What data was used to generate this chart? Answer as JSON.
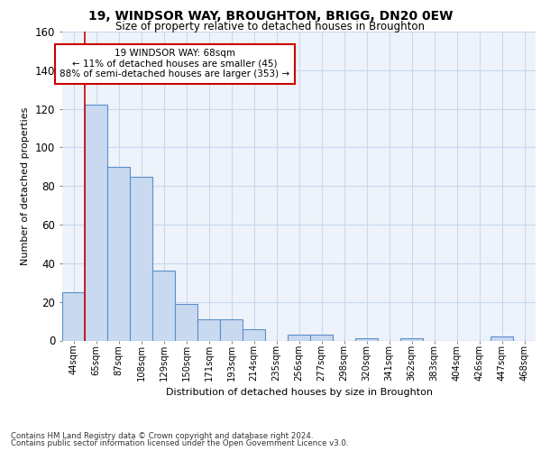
{
  "title1": "19, WINDSOR WAY, BROUGHTON, BRIGG, DN20 0EW",
  "title2": "Size of property relative to detached houses in Broughton",
  "xlabel": "Distribution of detached houses by size in Broughton",
  "ylabel": "Number of detached properties",
  "categories": [
    "44sqm",
    "65sqm",
    "87sqm",
    "108sqm",
    "129sqm",
    "150sqm",
    "171sqm",
    "193sqm",
    "214sqm",
    "235sqm",
    "256sqm",
    "277sqm",
    "298sqm",
    "320sqm",
    "341sqm",
    "362sqm",
    "383sqm",
    "404sqm",
    "426sqm",
    "447sqm",
    "468sqm"
  ],
  "values": [
    25,
    122,
    90,
    85,
    36,
    19,
    11,
    11,
    6,
    0,
    3,
    3,
    0,
    1,
    0,
    1,
    0,
    0,
    0,
    2,
    0
  ],
  "bar_color": "#c9d9f0",
  "bar_edge_color": "#5b8fc9",
  "bar_edge_width": 0.8,
  "vline_color": "#cc0000",
  "vline_x_index": 1,
  "annotation_text": "19 WINDSOR WAY: 68sqm\n← 11% of detached houses are smaller (45)\n88% of semi-detached houses are larger (353) →",
  "annotation_box_color": "#ffffff",
  "annotation_box_edge_color": "#cc0000",
  "ylim": [
    0,
    160
  ],
  "yticks": [
    0,
    20,
    40,
    60,
    80,
    100,
    120,
    140,
    160
  ],
  "grid_color": "#c8d8f0",
  "background_color": "#eef3fb",
  "footer1": "Contains HM Land Registry data © Crown copyright and database right 2024.",
  "footer2": "Contains public sector information licensed under the Open Government Licence v3.0."
}
